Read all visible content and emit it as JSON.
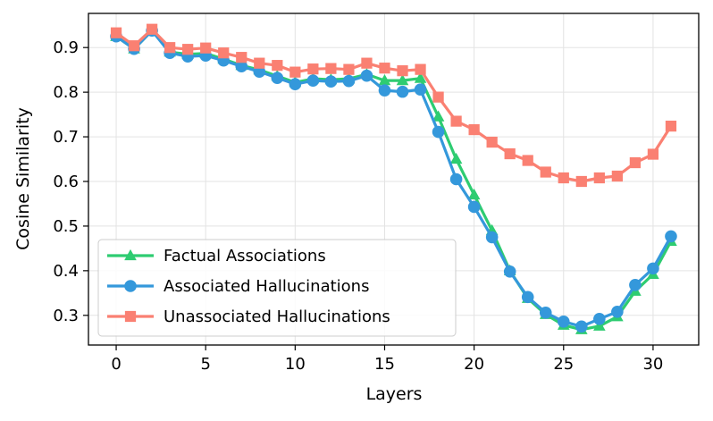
{
  "chart_data": {
    "type": "line",
    "xlabel": "Layers",
    "ylabel": "Cosine Similarity",
    "xlim": [
      -1.55,
      32.55
    ],
    "ylim": [
      0.2335,
      0.9765
    ],
    "xticks": [
      0,
      5,
      10,
      15,
      20,
      25,
      30
    ],
    "yticks": [
      0.3,
      0.4,
      0.5,
      0.6,
      0.7,
      0.8,
      0.9
    ],
    "grid": true,
    "legend_position": "lower-left",
    "x": [
      0,
      1,
      2,
      3,
      4,
      5,
      6,
      7,
      8,
      9,
      10,
      11,
      12,
      13,
      14,
      15,
      16,
      17,
      18,
      19,
      20,
      21,
      22,
      23,
      24,
      25,
      26,
      27,
      28,
      29,
      30,
      31
    ],
    "series": [
      {
        "name": "Factual Associations",
        "color": "#2ecc71",
        "marker": "triangle",
        "values": [
          0.925,
          0.897,
          0.938,
          0.89,
          0.885,
          0.887,
          0.874,
          0.86,
          0.85,
          0.836,
          0.822,
          0.83,
          0.828,
          0.83,
          0.84,
          0.826,
          0.826,
          0.831,
          0.745,
          0.65,
          0.57,
          0.49,
          0.4,
          0.338,
          0.302,
          0.278,
          0.268,
          0.276,
          0.297,
          0.354,
          0.392,
          0.466
        ]
      },
      {
        "name": "Associated Hallucinations",
        "color": "#3498db",
        "marker": "circle",
        "values": [
          0.925,
          0.897,
          0.938,
          0.888,
          0.88,
          0.882,
          0.871,
          0.858,
          0.846,
          0.832,
          0.818,
          0.826,
          0.824,
          0.825,
          0.837,
          0.804,
          0.801,
          0.806,
          0.711,
          0.605,
          0.543,
          0.475,
          0.398,
          0.341,
          0.306,
          0.286,
          0.275,
          0.292,
          0.308,
          0.368,
          0.405,
          0.477
        ]
      },
      {
        "name": "Unassociated Hallucinations",
        "color": "#fa8072",
        "marker": "square",
        "values": [
          0.933,
          0.904,
          0.941,
          0.9,
          0.896,
          0.899,
          0.888,
          0.878,
          0.865,
          0.86,
          0.845,
          0.852,
          0.853,
          0.851,
          0.865,
          0.854,
          0.848,
          0.851,
          0.789,
          0.735,
          0.716,
          0.688,
          0.662,
          0.647,
          0.621,
          0.608,
          0.6,
          0.608,
          0.612,
          0.642,
          0.661,
          0.724
        ]
      }
    ]
  }
}
